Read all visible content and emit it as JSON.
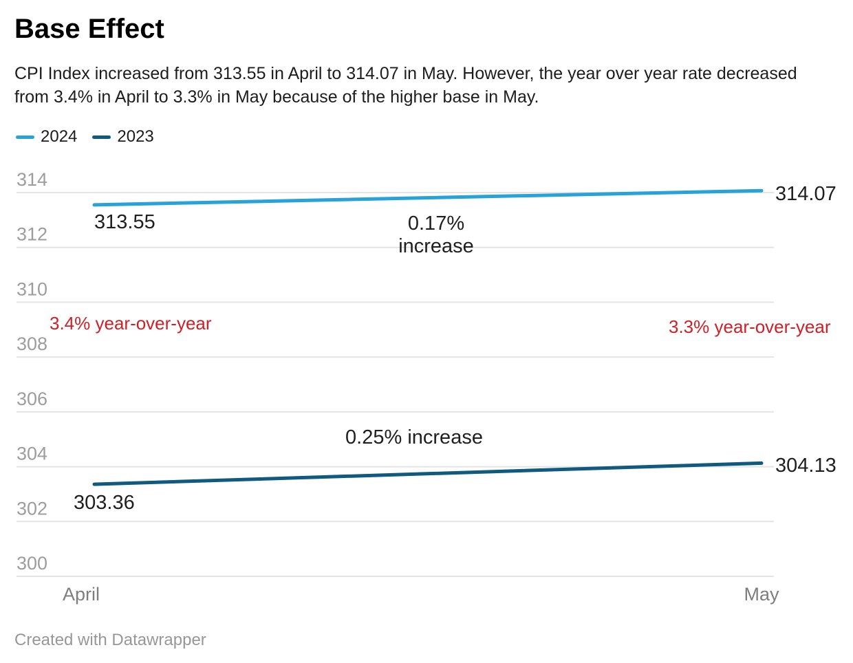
{
  "header": {
    "title": "Base Effect",
    "description": "CPI Index increased from 313.55 in April to 314.07 in May. However, the year over year rate decreased from 3.4% in April to 3.3% in May because of the higher base in May."
  },
  "legend": {
    "items": [
      {
        "label": "2024",
        "color": "#29a2d8"
      },
      {
        "label": "2023",
        "color": "#10597f"
      }
    ]
  },
  "chart_data": {
    "type": "line",
    "x": [
      "April",
      "May"
    ],
    "series": [
      {
        "name": "2024",
        "values": [
          313.55,
          314.07
        ],
        "color": "#29a2d8"
      },
      {
        "name": "2023",
        "values": [
          303.36,
          304.13
        ],
        "color": "#10597f"
      }
    ],
    "yticks": [
      314,
      312,
      310,
      308,
      306,
      304,
      302,
      300
    ],
    "ylim": [
      299.2,
      314.8
    ],
    "grid": true,
    "legend_position": "top-left",
    "point_labels": {
      "april_2024": "313.55",
      "may_2024": "314.07",
      "april_2023": "303.36",
      "may_2023": "304.13"
    },
    "annotations": {
      "increase_2024_line1": "0.17%",
      "increase_2024_line2": "increase",
      "increase_2023": "0.25% increase",
      "yoy_april": "3.4% year-over-year",
      "yoy_may": "3.3% year-over-year",
      "yoy_color": "#ce2026"
    }
  },
  "footer": {
    "credit": "Created with Datawrapper"
  }
}
